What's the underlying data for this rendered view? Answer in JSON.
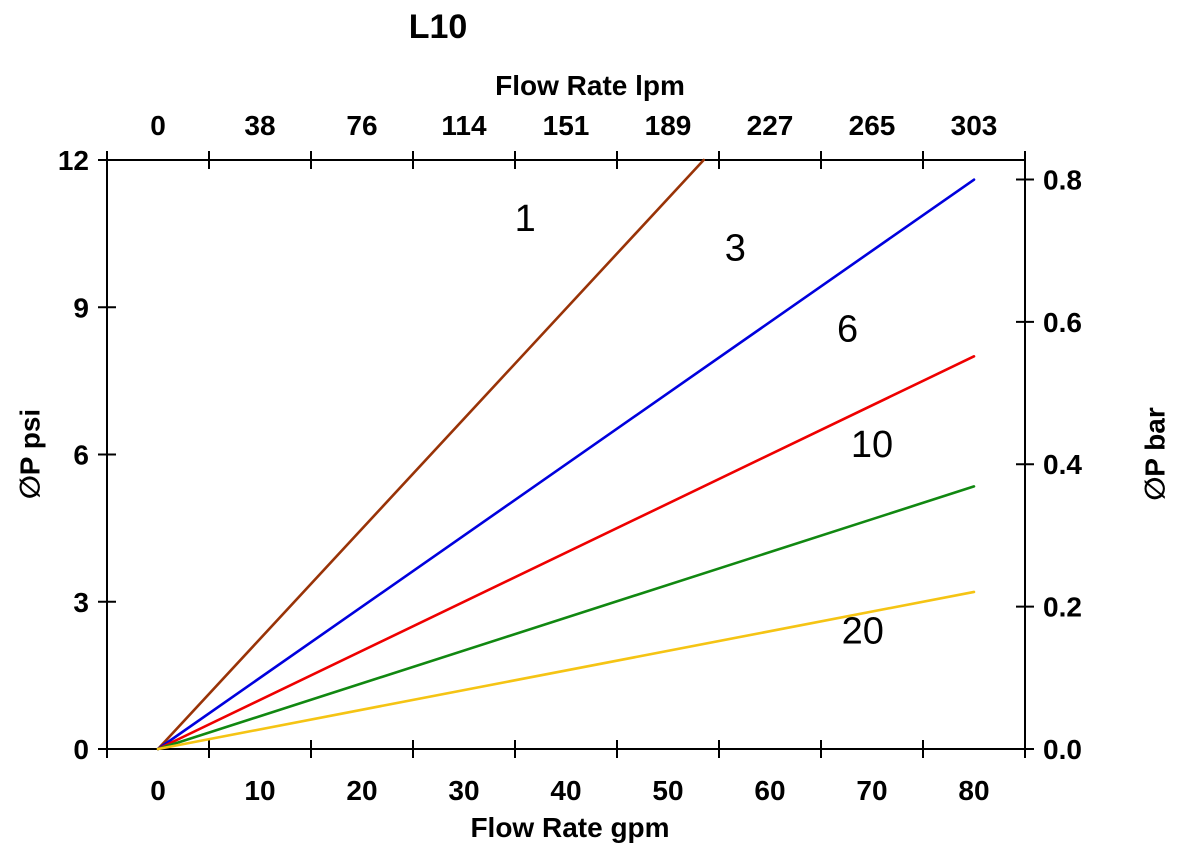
{
  "chart_data": {
    "type": "line",
    "title": "L10",
    "axes": {
      "top": {
        "label": "Flow Rate lpm",
        "ticks": [
          "0",
          "38",
          "76",
          "114",
          "151",
          "189",
          "227",
          "265",
          "303"
        ]
      },
      "bottom": {
        "label": "Flow Rate gpm",
        "ticks": [
          "0",
          "10",
          "20",
          "30",
          "40",
          "50",
          "60",
          "70",
          "80"
        ]
      },
      "left": {
        "label": "∅P psi",
        "ticks": [
          "0",
          "3",
          "6",
          "9",
          "12"
        ],
        "range": [
          0,
          12
        ]
      },
      "right": {
        "label": "∅P bar",
        "ticks": [
          "0.0",
          "0.2",
          "0.4",
          "0.6",
          "0.8"
        ],
        "psi_per_bar": 14.5038
      }
    },
    "x_range_gpm": [
      0,
      80
    ],
    "grid": false,
    "legend": "inline-labels",
    "series": [
      {
        "name": "1",
        "color": "#993307",
        "points_gpm_psi": [
          [
            0,
            0
          ],
          [
            53.5,
            12.0
          ]
        ]
      },
      {
        "name": "3",
        "color": "#0000DD",
        "points_gpm_psi": [
          [
            0,
            0
          ],
          [
            80,
            11.6
          ]
        ]
      },
      {
        "name": "6",
        "color": "#EE0000",
        "points_gpm_psi": [
          [
            0,
            0
          ],
          [
            80,
            8.0
          ]
        ]
      },
      {
        "name": "10",
        "color": "#118811",
        "points_gpm_psi": [
          [
            0,
            0
          ],
          [
            80,
            5.35
          ]
        ]
      },
      {
        "name": "20",
        "color": "#F5C414",
        "points_gpm_psi": [
          [
            0,
            0
          ],
          [
            80,
            3.2
          ]
        ]
      }
    ],
    "series_labels": [
      {
        "text": "1",
        "gpm": 36.0,
        "psi": 10.55
      },
      {
        "text": "3",
        "gpm": 56.6,
        "psi": 9.95
      },
      {
        "text": "6",
        "gpm": 67.6,
        "psi": 8.3
      },
      {
        "text": "10",
        "gpm": 70.0,
        "psi": 5.95
      },
      {
        "text": "20",
        "gpm": 69.1,
        "psi": 2.15
      }
    ]
  }
}
